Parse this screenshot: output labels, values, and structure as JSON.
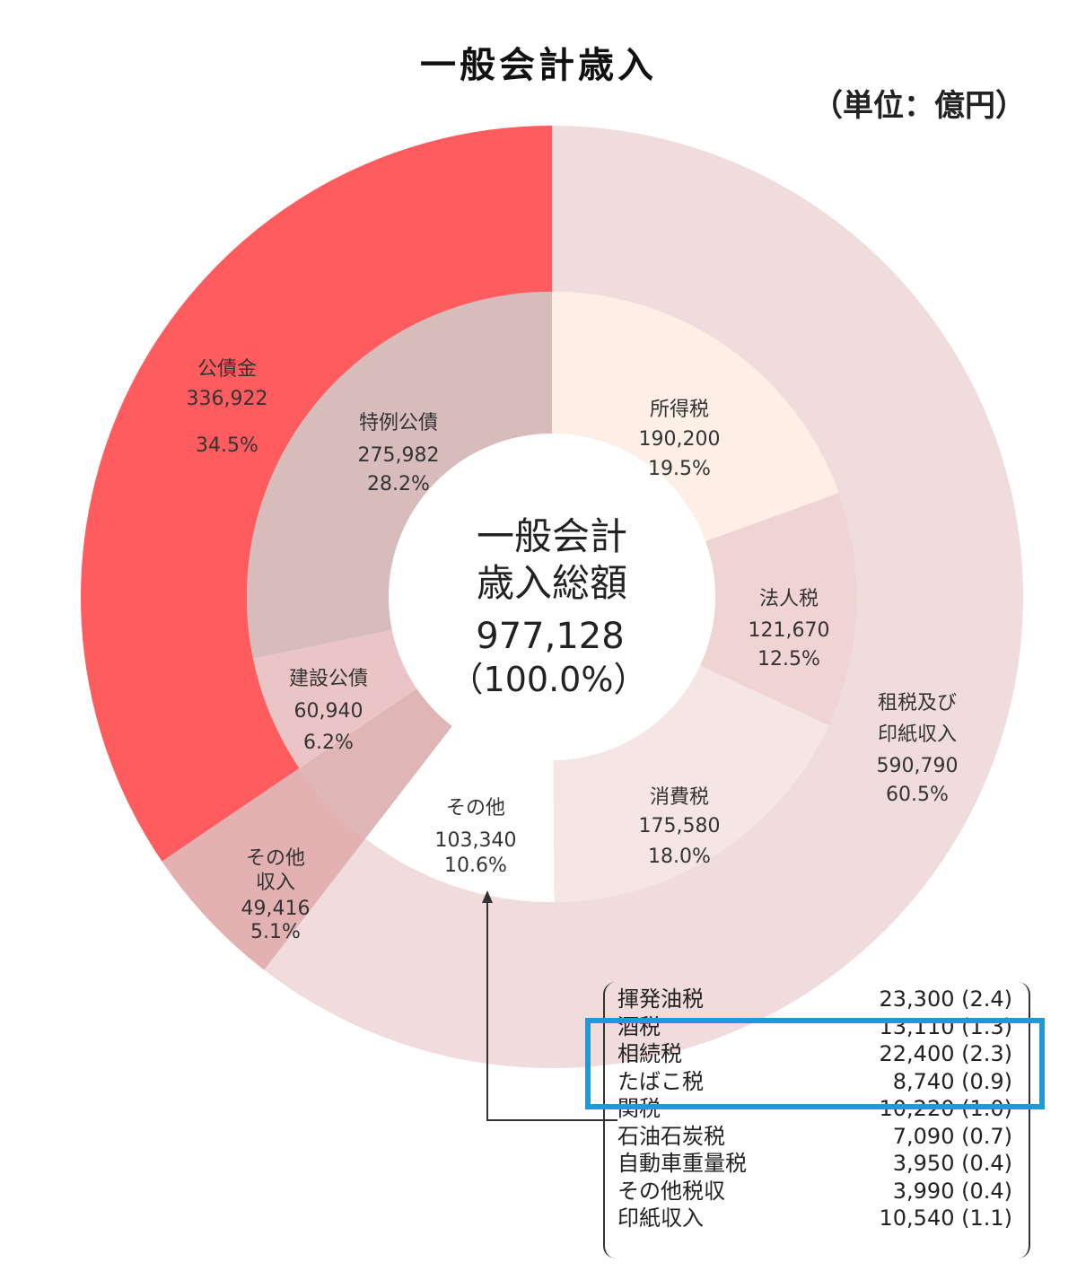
{
  "chart_data": {
    "type": "pie",
    "title": "一般会計歳入",
    "unit": "（単位：億円）",
    "center": {
      "line1": "一般会計",
      "line2": "歳入総額",
      "value": "977,128",
      "pct": "（100.0%）"
    },
    "total": 977128,
    "outer_ring": [
      {
        "name": "租税及び印紙収入",
        "value": 590790,
        "value_label": "590,790",
        "pct": "60.5%",
        "color": "#f0dcdc"
      },
      {
        "name": "その他収入",
        "value": 49416,
        "value_label": "49,416",
        "pct": "5.1%",
        "color": "#e3b1b1"
      },
      {
        "name": "公債金",
        "value": 336922,
        "value_label": "336,922",
        "pct": "34.5%",
        "color": "#fe5c5e"
      }
    ],
    "inner_ring": [
      {
        "name": "所得税",
        "value": 190200,
        "value_label": "190,200",
        "pct": "19.5%",
        "color": "#fdeee6"
      },
      {
        "name": "法人税",
        "value": 121670,
        "value_label": "121,670",
        "pct": "12.5%",
        "color": "#f0d3d3"
      },
      {
        "name": "消費税",
        "value": 175580,
        "value_label": "175,580",
        "pct": "18.0%",
        "color": "#f6e5e5"
      },
      {
        "name": "その他",
        "value": 103340,
        "value_label": "103,340",
        "pct": "10.6%",
        "color": "#ffffff"
      },
      {
        "name": "その他収入",
        "value": 49416,
        "value_label": "",
        "pct": "",
        "color": "#dfb5b5"
      },
      {
        "name": "建設公債",
        "value": 60940,
        "value_label": "60,940",
        "pct": "6.2%",
        "color": "#ebc5c5"
      },
      {
        "name": "特例公債",
        "value": 275982,
        "value_label": "275,982",
        "pct": "28.2%",
        "color": "#d8bcbc"
      }
    ],
    "labels": {
      "shotoku": {
        "name": "所得税",
        "value": "190,200",
        "pct": "19.5%"
      },
      "hojin": {
        "name": "法人税",
        "value": "121,670",
        "pct": "12.5%"
      },
      "shohi": {
        "name": "消費税",
        "value": "175,580",
        "pct": "18.0%"
      },
      "sonota": {
        "name": "その他",
        "value": "103,340",
        "pct": "10.6%"
      },
      "kensetsu": {
        "name": "建設公債",
        "value": "60,940",
        "pct": "6.2%"
      },
      "tokurei": {
        "name": "特例公債",
        "value": "275,982",
        "pct": "28.2%"
      },
      "kosai": {
        "name": "公債金",
        "value": "336,922",
        "pct": "34.5%"
      },
      "sonota_shunyu": {
        "name1": "その他",
        "name2": "収入",
        "value": "49,416",
        "pct": "5.1%"
      },
      "sozei": {
        "name1": "租税及び",
        "name2": "印紙収入",
        "value": "590,790",
        "pct": "60.5%"
      }
    },
    "other_breakdown": [
      {
        "name": "揮発油税",
        "amount": "23,300 (2.4)",
        "value": 23300,
        "pct": 2.4
      },
      {
        "name": "酒税",
        "amount": "13,110 (1.3)",
        "value": 13110,
        "pct": 1.3
      },
      {
        "name": "相続税",
        "amount": "22,400 (2.3)",
        "value": 22400,
        "pct": 2.3
      },
      {
        "name": "たばこ税",
        "amount": "8,740 (0.9)",
        "value": 8740,
        "pct": 0.9
      },
      {
        "name": "関税",
        "amount": "10,220 (1.0)",
        "value": 10220,
        "pct": 1.0
      },
      {
        "name": "石油石炭税",
        "amount": "7,090 (0.7)",
        "value": 7090,
        "pct": 0.7
      },
      {
        "name": "自動車重量税",
        "amount": "3,950 (0.4)",
        "value": 3950,
        "pct": 0.4
      },
      {
        "name": "その他税収",
        "amount": "3,990 (0.4)",
        "value": 3990,
        "pct": 0.4
      },
      {
        "name": "印紙収入",
        "amount": "10,540 (1.1)",
        "value": 10540,
        "pct": 1.1
      }
    ],
    "highlighted_rows": [
      "酒税",
      "相続税",
      "たばこ税"
    ]
  }
}
